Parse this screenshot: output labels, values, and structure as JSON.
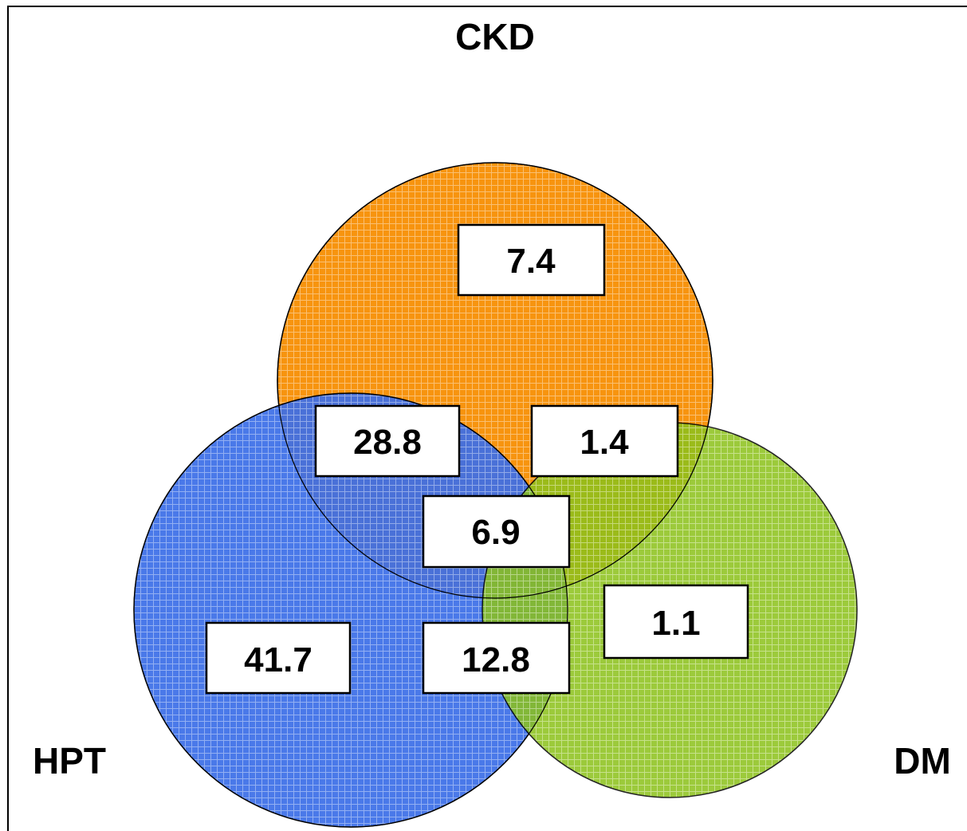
{
  "sets": [
    {
      "key": "ckd",
      "label": "CKD",
      "color": "#F7940F"
    },
    {
      "key": "hpt",
      "label": "HPT",
      "color": "#3D6FE8"
    },
    {
      "key": "dm",
      "label": "DM",
      "color": "#8CC21C"
    }
  ],
  "regions": {
    "ckd_only": "7.4",
    "ckd_hpt": "28.8",
    "ckd_dm": "1.4",
    "ckd_hpt_dm": "6.9",
    "hpt_only": "41.7",
    "hpt_dm": "12.8",
    "dm_only": "1.1"
  }
}
